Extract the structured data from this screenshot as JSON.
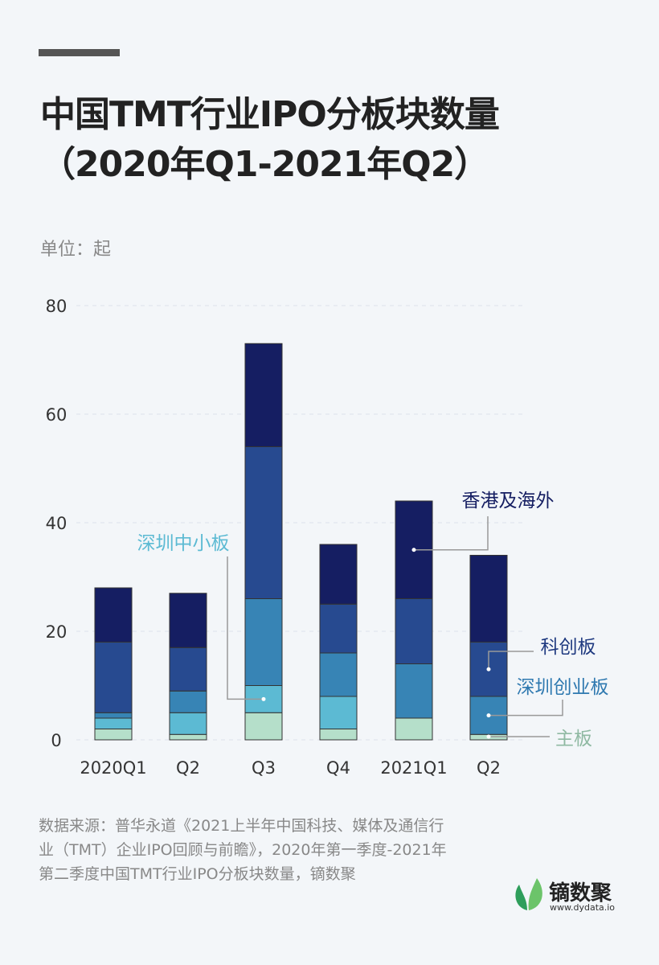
{
  "title_line1": "中国TMT行业IPO分板块数量",
  "title_line2": "（2020年Q1-2021年Q2）",
  "unit": "单位：起",
  "source": "数据来源：普华永道《2021上半年中国科技、媒体及通信行业（TMT）企业IPO回顾与前瞻》，2020年第一季度-2021年第二季度中国TMT行业IPO分板块数量，镝数聚",
  "logo": {
    "name": "镝数聚",
    "url": "www.dydata.io"
  },
  "chart_data": {
    "type": "bar",
    "stacked": true,
    "categories": [
      "2020Q1",
      "Q2",
      "Q3",
      "Q4",
      "2021Q1",
      "Q2"
    ],
    "ylim": [
      0,
      80
    ],
    "yticks": [
      0,
      20,
      40,
      60,
      80
    ],
    "grid": true,
    "series": [
      {
        "name": "主板",
        "color": "#b5dfca",
        "label_color": "#8fb9a2",
        "values": [
          2,
          1,
          5,
          2,
          4,
          1
        ]
      },
      {
        "name": "深圳中小板",
        "color": "#5cbad3",
        "label_color": "#5cbad3",
        "values": [
          2,
          4,
          5,
          6,
          0,
          0
        ]
      },
      {
        "name": "深圳创业板",
        "color": "#3784b5",
        "label_color": "#2f79b0",
        "values": [
          1,
          4,
          16,
          8,
          10,
          7
        ]
      },
      {
        "name": "科创板",
        "color": "#274a90",
        "label_color": "#1f3a80",
        "values": [
          13,
          8,
          28,
          9,
          12,
          10
        ]
      },
      {
        "name": "香港及海外",
        "color": "#151e62",
        "label_color": "#151e62",
        "values": [
          10,
          10,
          19,
          11,
          18,
          16
        ]
      }
    ]
  }
}
